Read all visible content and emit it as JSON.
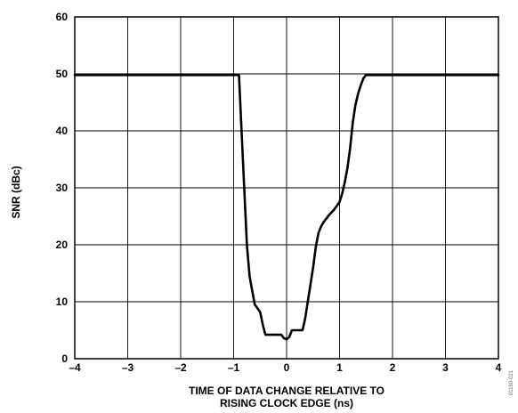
{
  "chart_data": {
    "type": "line",
    "xlabel": [
      "TIME OF DATA CHANGE RELATIVE TO",
      "RISING CLOCK EDGE (ns)"
    ],
    "ylabel": "SNR (dBc)",
    "xlim": [
      -4,
      4
    ],
    "ylim": [
      0,
      60
    ],
    "xticks": [
      -4,
      -3,
      -2,
      -1,
      0,
      1,
      2,
      3,
      4
    ],
    "xtick_labels": [
      "–4",
      "–3",
      "–2",
      "–1",
      "0",
      "1",
      "2",
      "3",
      "4"
    ],
    "yticks": [
      0,
      10,
      20,
      30,
      40,
      50,
      60
    ],
    "ytick_labels": [
      "0",
      "10",
      "20",
      "30",
      "40",
      "50",
      "60"
    ],
    "grid": true,
    "series": [
      {
        "x": [
          -4.0,
          -0.9,
          -0.85,
          -0.8,
          -0.75,
          -0.7,
          -0.65,
          -0.6,
          -0.5,
          -0.45,
          -0.4,
          -0.35,
          -0.3,
          -0.2,
          -0.1,
          -0.05,
          0.0,
          0.05,
          0.1,
          0.15,
          0.2,
          0.3,
          0.35,
          0.4,
          0.45,
          0.5,
          0.55,
          0.6,
          0.65,
          0.7,
          0.8,
          0.9,
          1.0,
          1.05,
          1.1,
          1.15,
          1.2,
          1.25,
          1.3,
          1.35,
          1.4,
          1.45,
          1.5,
          4.0
        ],
        "y": [
          49.8,
          49.8,
          40,
          30,
          20,
          14.5,
          12,
          9.5,
          8.2,
          6,
          4.2,
          4.2,
          4.2,
          4.2,
          4.2,
          3.6,
          3.4,
          3.8,
          5,
          5,
          5,
          5,
          7,
          10,
          13,
          16,
          19.5,
          22,
          23.2,
          24,
          25.2,
          26.2,
          27.5,
          29,
          31,
          33.5,
          37,
          41.5,
          44.5,
          46.5,
          48,
          49.2,
          49.8,
          49.8
        ]
      }
    ]
  },
  "side_code": "01160-021"
}
